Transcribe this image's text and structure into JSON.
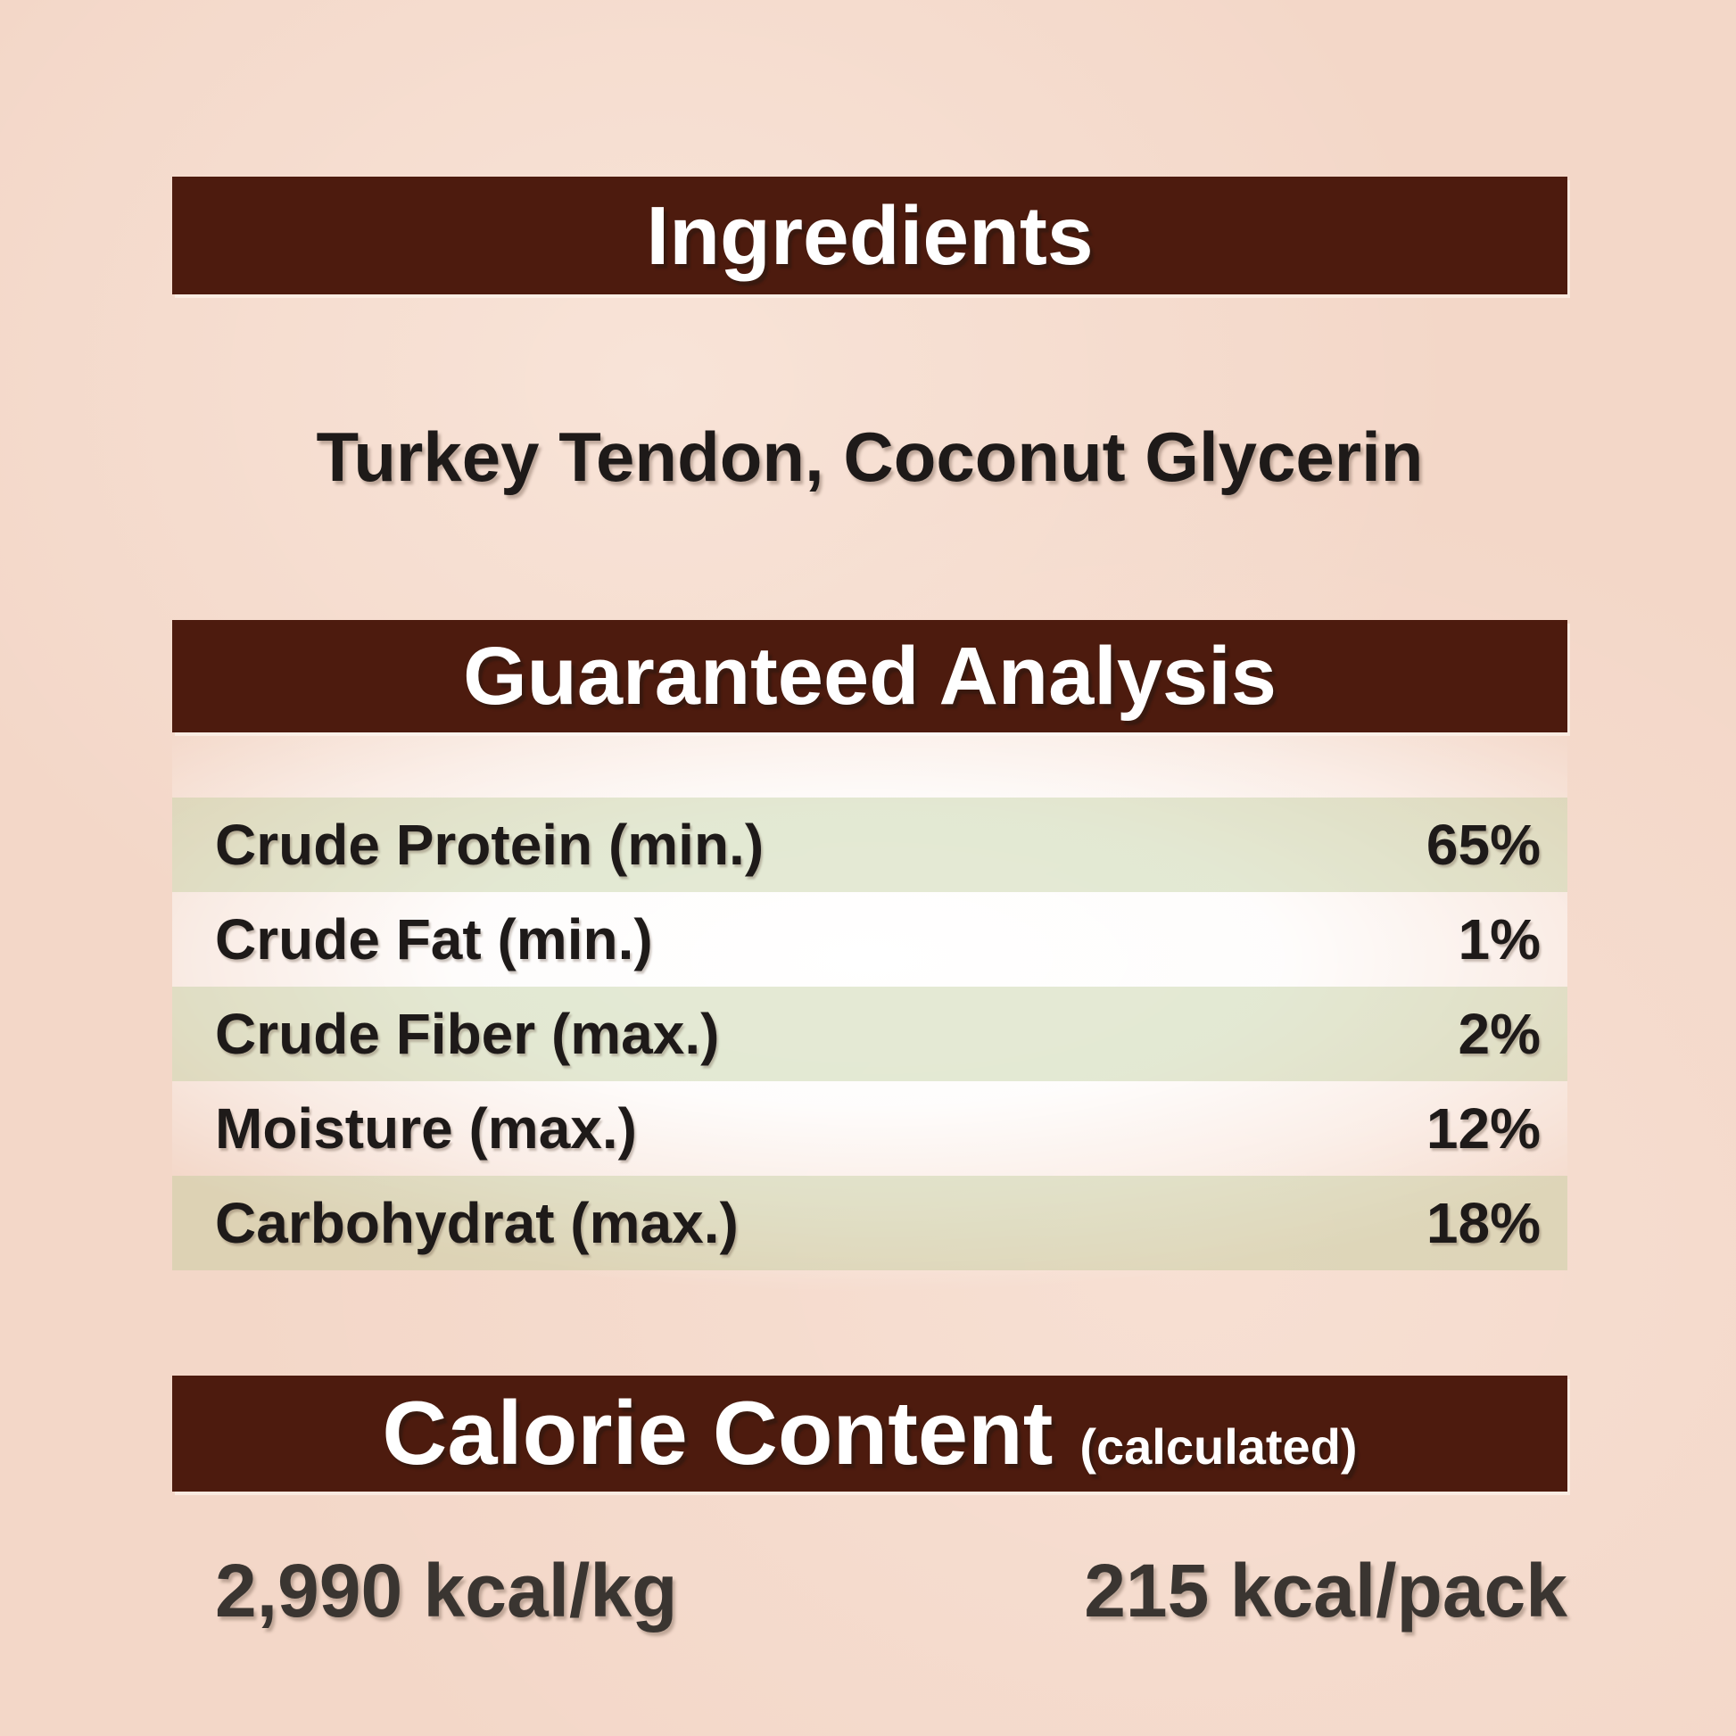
{
  "label": {
    "ingredients": {
      "title": "Ingredients",
      "items": "Turkey Tendon, Coconut Glycerin"
    },
    "guaranteed_analysis": {
      "title": "Guaranteed Analysis",
      "rows": [
        {
          "label": "Crude Protein (min.)",
          "value": "65%"
        },
        {
          "label": "Crude Fat (min.)",
          "value": "1%"
        },
        {
          "label": "Crude Fiber (max.)",
          "value": "2%"
        },
        {
          "label": "Moisture (max.)",
          "value": "12%"
        },
        {
          "label": "Carbohydrat (max.)",
          "value": "18%"
        }
      ]
    },
    "calorie_content": {
      "title": "Calorie Content",
      "qualifier": "(calculated)",
      "per_kg": "2,990 kcal/kg",
      "per_pack": "215 kcal/pack"
    }
  },
  "colors": {
    "bar_brown": "#4d1b0e",
    "paper_pink": "#f3d7c8",
    "stripe_green": "rgba(187, 203, 150, 0.4)",
    "text_dark": "#1e1a19",
    "kcal_text": "#3a3531"
  }
}
